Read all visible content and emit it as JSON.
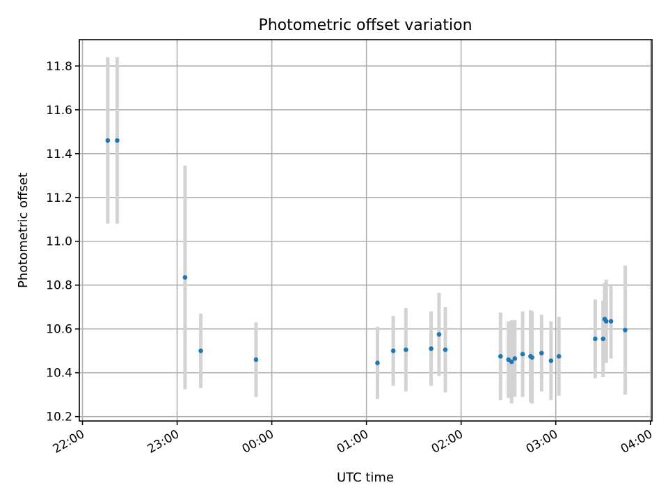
{
  "chart_data": {
    "type": "scatter",
    "title": "Photometric offset variation",
    "xlabel": "UTC time",
    "ylabel": "Photometric offset",
    "xlim": [
      "21:58",
      "04:01"
    ],
    "ylim": [
      10.18,
      11.92
    ],
    "x_tick_labels": [
      "22:00",
      "23:00",
      "00:00",
      "01:00",
      "02:00",
      "03:00",
      "04:00"
    ],
    "y_tick_labels": [
      "10.2",
      "10.4",
      "10.6",
      "10.8",
      "11.0",
      "11.2",
      "11.4",
      "11.6",
      "11.8"
    ],
    "grid": true,
    "colors": {
      "points": "#1f77b4",
      "error_bars": "#d3d3d3",
      "grid": "#b0b0b0"
    },
    "series": [
      {
        "x": [
          "22:16",
          "22:22",
          "23:05",
          "23:15",
          "23:50",
          "01:07",
          "01:17",
          "01:25",
          "01:41",
          "01:46",
          "01:50",
          "02:25",
          "02:30",
          "02:32",
          "02:34",
          "02:39",
          "02:44",
          "02:45",
          "02:51",
          "02:57",
          "03:02",
          "03:25",
          "03:30",
          "03:31",
          "03:32",
          "03:35",
          "03:44"
        ],
        "y": [
          11.46,
          11.46,
          10.835,
          10.5,
          10.46,
          10.445,
          10.5,
          10.505,
          10.51,
          10.575,
          10.505,
          10.475,
          10.46,
          10.45,
          10.465,
          10.485,
          10.475,
          10.47,
          10.49,
          10.455,
          10.475,
          10.555,
          10.555,
          10.645,
          10.635,
          10.635,
          10.595
        ],
        "err": [
          0.38,
          0.38,
          0.51,
          0.17,
          0.17,
          0.165,
          0.16,
          0.19,
          0.17,
          0.19,
          0.195,
          0.2,
          0.175,
          0.19,
          0.175,
          0.195,
          0.21,
          0.21,
          0.175,
          0.18,
          0.18,
          0.18,
          0.175,
          0.165,
          0.19,
          0.17,
          0.295
        ]
      }
    ]
  }
}
